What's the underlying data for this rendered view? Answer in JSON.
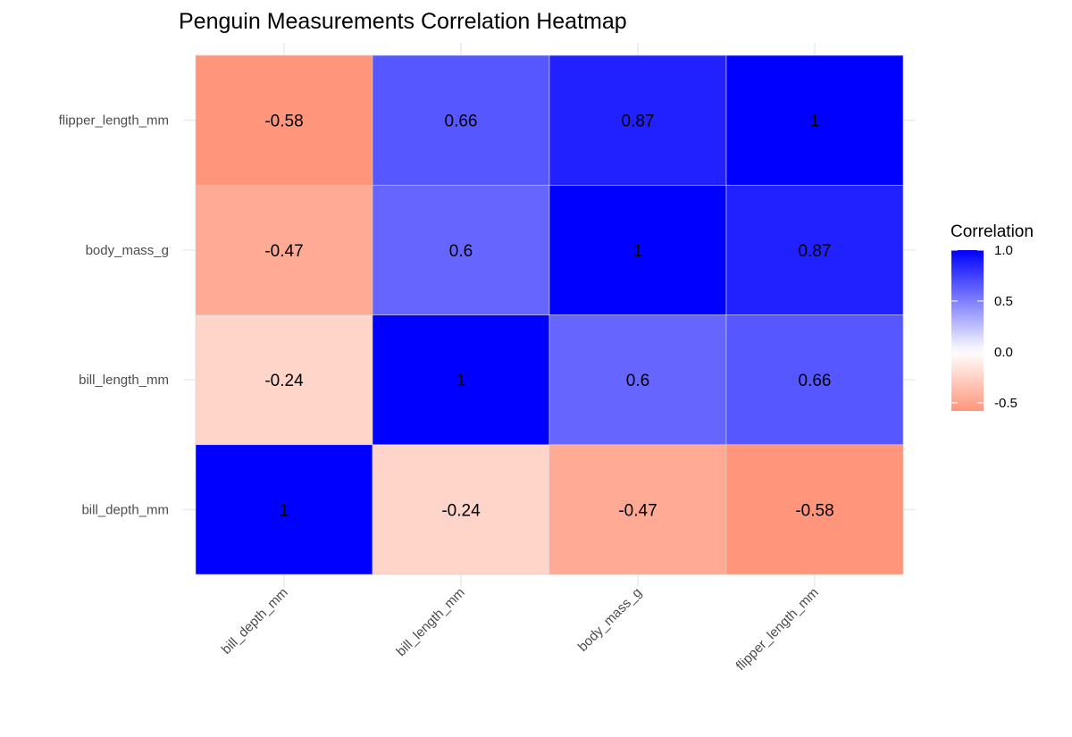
{
  "chart_data": {
    "type": "heatmap",
    "title": "Penguin Measurements Correlation Heatmap",
    "xlabel": "",
    "ylabel": "",
    "x_categories": [
      "bill_depth_mm",
      "bill_length_mm",
      "body_mass_g",
      "flipper_length_mm"
    ],
    "y_categories": [
      "bill_depth_mm",
      "bill_length_mm",
      "body_mass_g",
      "flipper_length_mm"
    ],
    "values": [
      [
        1,
        -0.24,
        -0.47,
        -0.58
      ],
      [
        -0.24,
        1,
        0.6,
        0.66
      ],
      [
        -0.47,
        0.6,
        1,
        0.87
      ],
      [
        -0.58,
        0.66,
        0.87,
        1
      ]
    ],
    "labels": [
      [
        "1",
        "-0.24",
        "-0.47",
        "-0.58"
      ],
      [
        "-0.24",
        "1",
        "0.6",
        "0.66"
      ],
      [
        "-0.47",
        "0.6",
        "1",
        "0.87"
      ],
      [
        "-0.58",
        "0.66",
        "0.87",
        "1"
      ]
    ],
    "legend": {
      "title": "Correlation",
      "position": "right",
      "range": [
        -0.58,
        1
      ],
      "ticks": [
        1.0,
        0.5,
        0.0,
        -0.5
      ],
      "tick_labels": [
        "1.0",
        "0.5",
        "0.0",
        "-0.5"
      ]
    },
    "colors": {
      "low": "#FF4A1C",
      "mid": "#FFFFFF",
      "high": "#0000FF"
    }
  }
}
